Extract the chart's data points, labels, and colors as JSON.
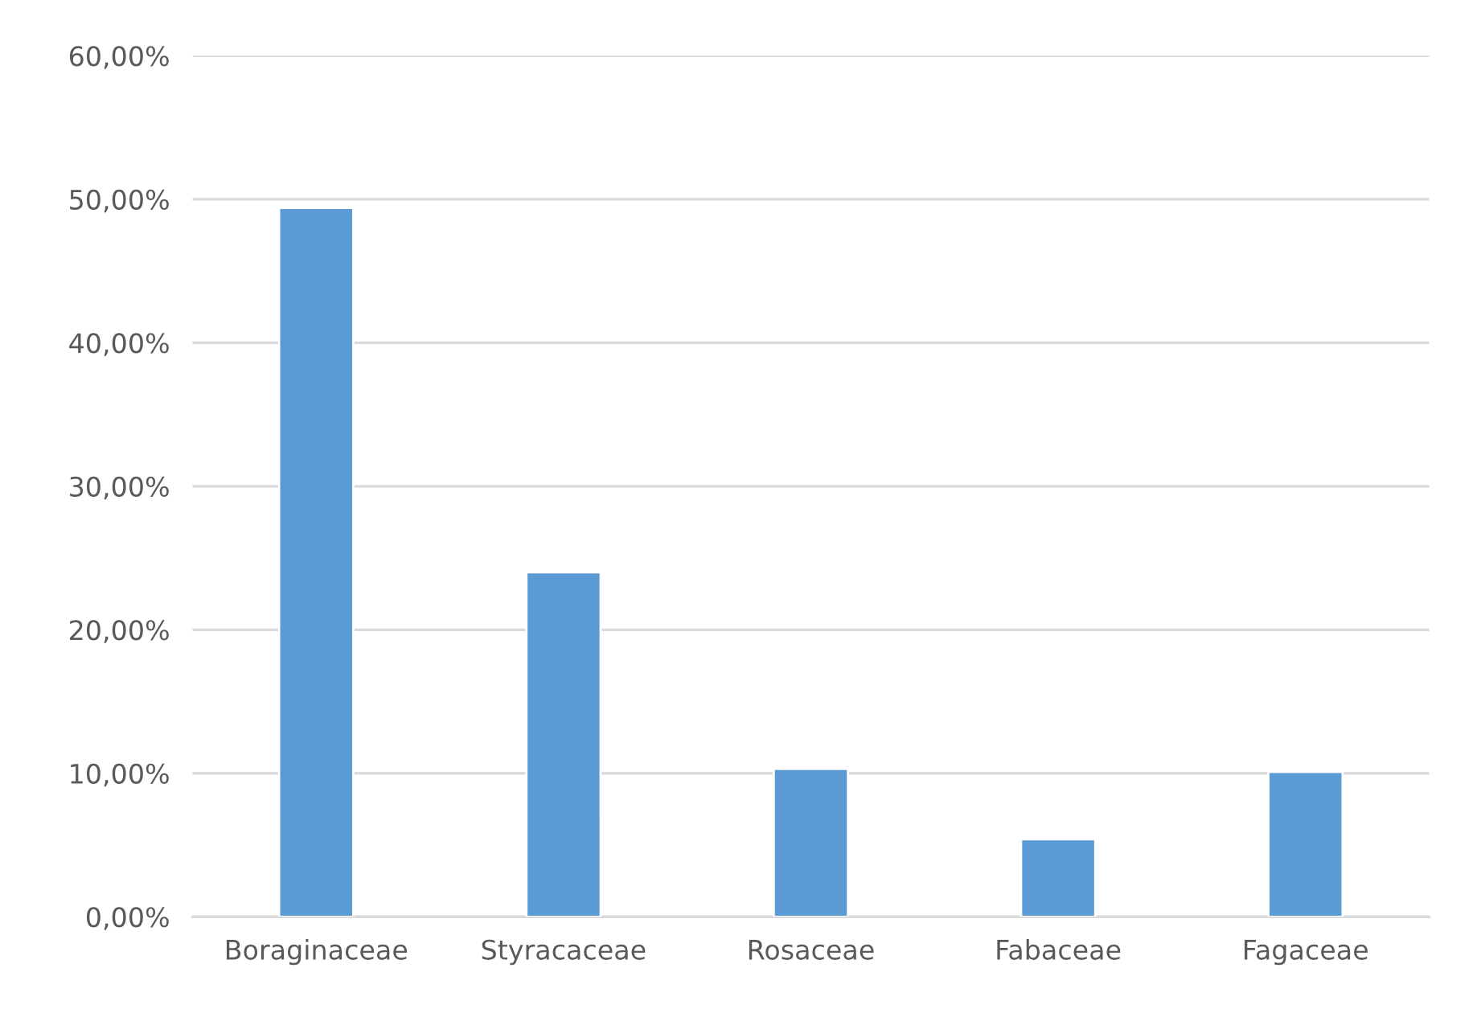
{
  "chart_data": {
    "type": "bar",
    "categories": [
      "Boraginaceae",
      "Styracaceae",
      "Rosaceae",
      "Fabaceae",
      "Fagaceae"
    ],
    "values": [
      49.4,
      24.0,
      10.3,
      5.4,
      10.1
    ],
    "color": "#5b9bd5",
    "ylim": [
      0,
      60
    ],
    "yticks": [
      {
        "value": 0,
        "label": "0,00%"
      },
      {
        "value": 10,
        "label": "10,00%"
      },
      {
        "value": 20,
        "label": "20,00%"
      },
      {
        "value": 30,
        "label": "30,00%"
      },
      {
        "value": 40,
        "label": "40,00%"
      },
      {
        "value": 50,
        "label": "50,00%"
      },
      {
        "value": 60,
        "label": "60,00%"
      }
    ],
    "grid": "y"
  }
}
